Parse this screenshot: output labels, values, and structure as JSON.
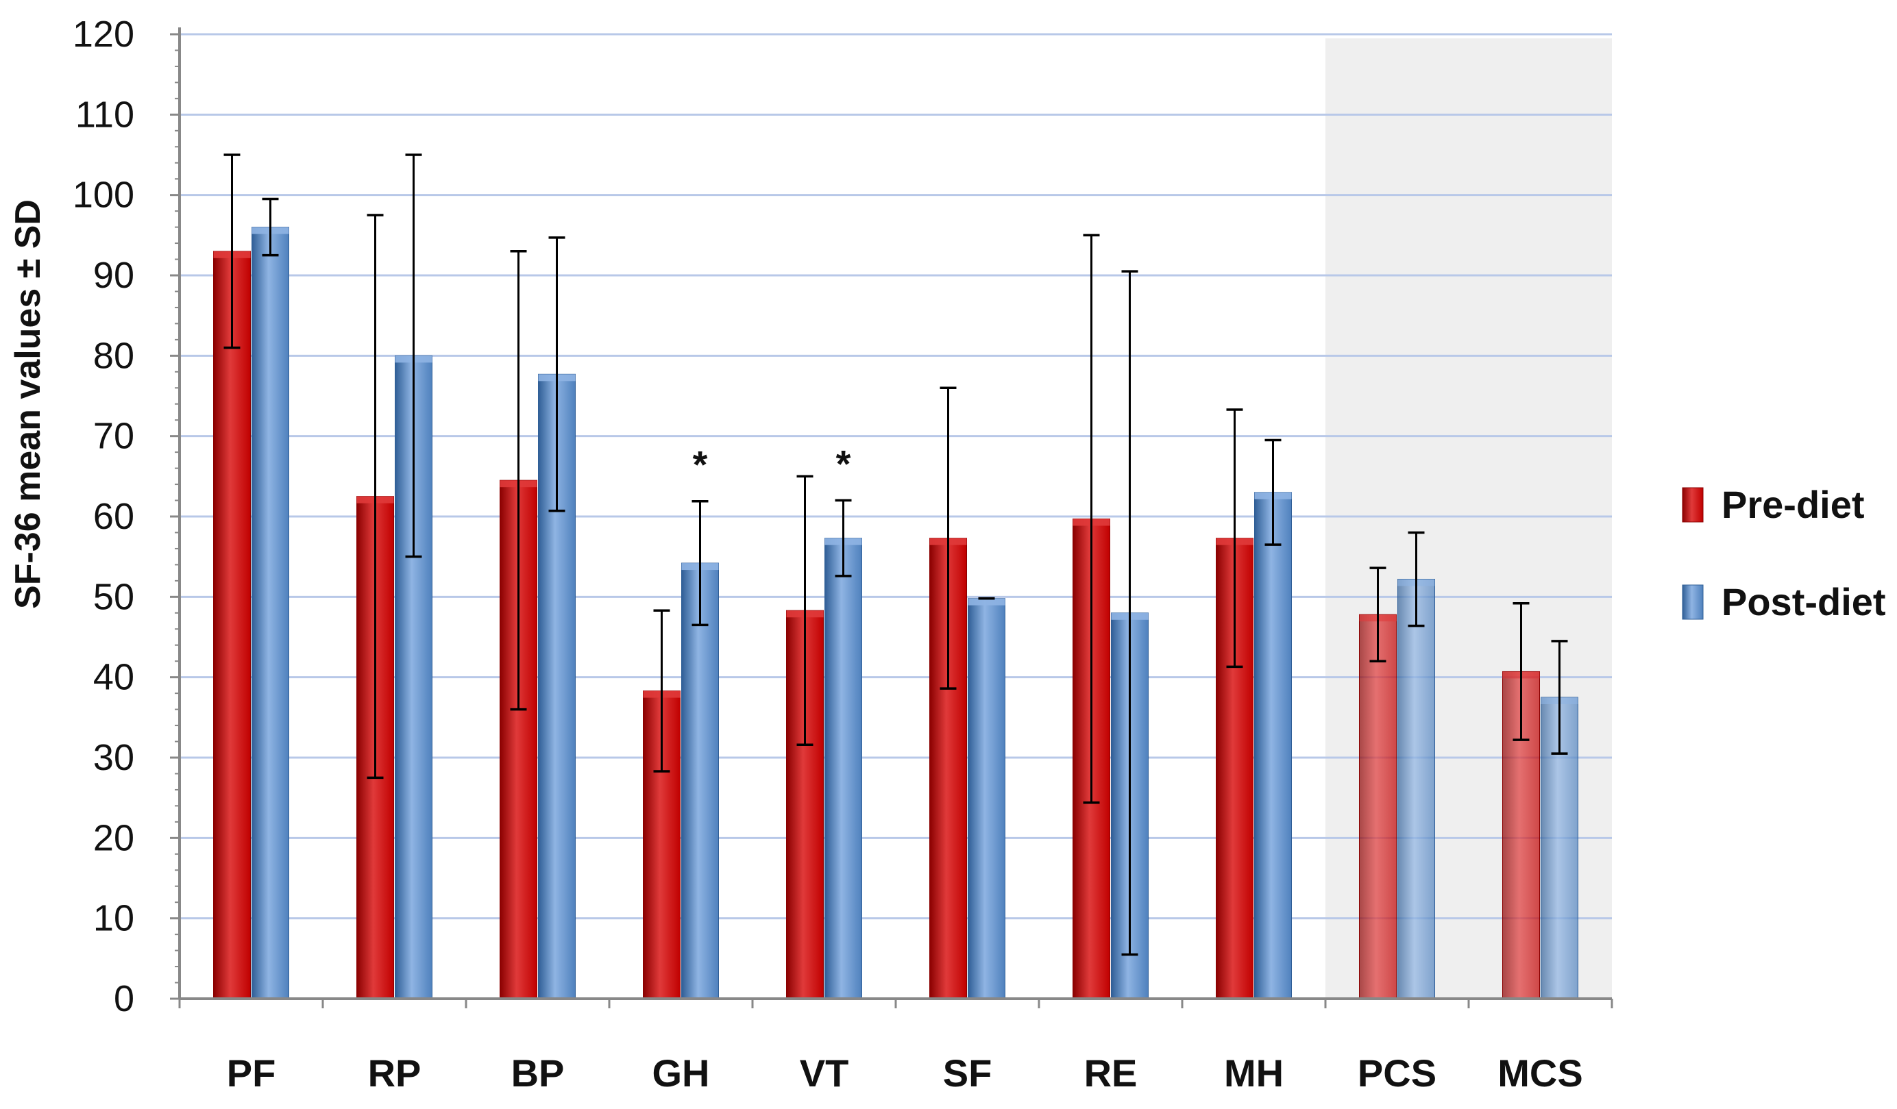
{
  "chart_data": {
    "type": "bar",
    "ylabel": "SF-36 mean values  ± SD",
    "ylim": [
      0,
      120
    ],
    "ytick_step": 10,
    "categories": [
      "PF",
      "RP",
      "BP",
      "GH",
      "VT",
      "SF",
      "RE",
      "MH",
      "PCS",
      "MCS"
    ],
    "series": [
      {
        "name": "Pre-diet",
        "color": "#c00000",
        "values": [
          93,
          62.5,
          64.5,
          38.3,
          48.3,
          57.3,
          59.7,
          57.3,
          47.8,
          40.7
        ],
        "sd": [
          12,
          35,
          28.5,
          10,
          16.7,
          18.7,
          35.3,
          16,
          5.8,
          8.5
        ]
      },
      {
        "name": "Post-diet",
        "color": "#4f81bd",
        "values": [
          96,
          80,
          77.7,
          54.2,
          57.3,
          49.8,
          48,
          63,
          52.2,
          37.5
        ],
        "sd": [
          3.5,
          25,
          17,
          7.7,
          4.7,
          0,
          42.5,
          6.5,
          5.8,
          7
        ]
      }
    ],
    "significance": [
      {
        "category": "GH",
        "label": "*"
      },
      {
        "category": "VT",
        "label": "*"
      }
    ],
    "highlight_categories": [
      "PCS",
      "MCS"
    ],
    "legend_position": "right",
    "colors": {
      "grid": "#b8c8e8",
      "highlight_bg": "#efefef",
      "axis": "#888888"
    }
  }
}
